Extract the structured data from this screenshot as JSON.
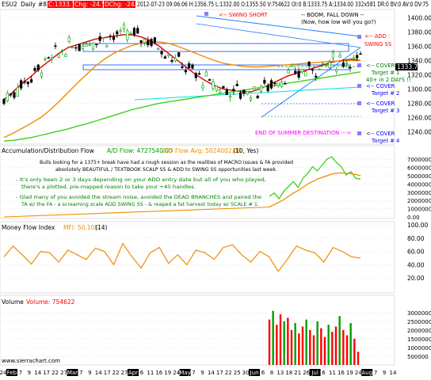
{
  "header": {
    "symbol": "ESU2",
    "period": "Daily",
    "study_no": "#8",
    "close_badge": "C:1333.75",
    "chg": "Chg: -24.50",
    "dchg": "DChg: -24.50",
    "quote": "2012-07-23 09:06:06 H:1356.75 L:1332.00 O:1355.50 V:754622 OI:0 B:1333.75 A:1334.00 332x581 DR:0 BV:0 AV:0 DV:75"
  },
  "annotations": {
    "swing_short": "<-- SWING SHORT",
    "boom_line1": "-- BOOM, FALL DOWN --",
    "boom_line2": "(Now, how low will you go?)",
    "add_line1": "<-- ADD :",
    "add_line2": "SWING SS",
    "cover1_line1": "<-- COVER",
    "cover1_line2": "Target # 1",
    "days_note": "40+ in 2 DAYS !!",
    "cover2_line1": "<-- COVER",
    "cover2_line2": "Target # 2",
    "cover3_line1": "<-- COVER",
    "cover3_line2": "Target # 3",
    "summer": "END OF SUMMER DESTINATION --->",
    "cover4_line1": "<-- COVER",
    "cover4_line2": "Target # 4",
    "note1_l1": "Bulls looking for a 1375+ break have had a rough session as the realities of MACRO issues & FA provided",
    "note1_l2": "absolutely BEAUTIFUL / TEXTBOOK SCALP SS & ADD to SWING SS opportunities last week.",
    "note2_l1": "- It's only been 2 or 3 days depending on your ADD entry date but all of you who played,",
    "note2_l2": "there's a plotted, pre-mapped reason to take your +40 handles.",
    "note3_l1": "- Glad many of you avoided the stream noise, avoided the DEAD BRANCHES and paired the",
    "note3_l2": "TA w/ the FA - a screaming scale ADD SWING SS - & reaped a fat harvest today w/ SCALE # 1."
  },
  "price_tag": "1333.75",
  "watermark": "www.sierrachart.com",
  "colors": {
    "price_up": "#00a000",
    "price_down": "#000000",
    "ema_red": "#e00000",
    "ma_orange": "#f08c00",
    "ma_green": "#40d020",
    "trend_blue": "#2080ff",
    "channel": "#0050ff",
    "cyan": "#00e0e0",
    "magenta": "#ff00ff",
    "label_blue": "#0000ff",
    "label_red": "#ff0000",
    "dark_green": "#008000",
    "vol_red": "#ff0000",
    "vol_green": "#00a000",
    "marker_purple": "#8080ff"
  },
  "chart_data": [
    {
      "type": "candlestick",
      "title": "ESU2 Daily",
      "y_ticks": [
        1240,
        1260,
        1280,
        1300,
        1320,
        1340,
        1360,
        1380,
        1400
      ],
      "ylim": [
        1225,
        1407
      ],
      "series": [
        {
          "name": "EMA red",
          "values": [
            1285,
            1296,
            1308,
            1318,
            1330,
            1340,
            1350,
            1358,
            1362,
            1366,
            1370,
            1372,
            1374,
            1376,
            1376,
            1373,
            1368,
            1360,
            1350,
            1340,
            1330,
            1320,
            1312,
            1305,
            1300,
            1298,
            1296,
            1296,
            1300,
            1306,
            1312,
            1318,
            1322,
            1326,
            1330,
            1334,
            1338,
            1340,
            1342,
            1340
          ]
        },
        {
          "name": "MA orange",
          "values": [
            1232,
            1238,
            1245,
            1252,
            1260,
            1270,
            1282,
            1295,
            1308,
            1320,
            1332,
            1342,
            1350,
            1356,
            1361,
            1364,
            1366,
            1366,
            1364,
            1360,
            1355,
            1350,
            1345,
            1340,
            1336,
            1334,
            1332,
            1331,
            1331,
            1332,
            1333,
            1334,
            1335,
            1336,
            1337,
            1338,
            1339,
            1339,
            1340,
            1340
          ]
        },
        {
          "name": "MA green",
          "values": [
            1227,
            1228,
            1230,
            1232,
            1235,
            1238,
            1241,
            1244,
            1248,
            1251,
            1255,
            1259,
            1263,
            1267,
            1271,
            1274,
            1277,
            1280,
            1282,
            1284,
            1286,
            1288,
            1290,
            1292,
            1294,
            1296,
            1298,
            1300,
            1302,
            1304,
            1306,
            1308,
            1310,
            1312,
            1314,
            1316,
            1318,
            1320,
            1322,
            1324
          ]
        }
      ],
      "levels": [
        {
          "name": "Target # 1",
          "price": 1340
        },
        {
          "name": "Target # 2",
          "price": 1305
        },
        {
          "name": "Target # 3",
          "price": 1282
        },
        {
          "name": "Target # 4",
          "price": 1262
        }
      ]
    },
    {
      "type": "line",
      "title": "Accumulation/Distribution Flow",
      "legend": [
        "A/D Flow: 4727540.00",
        "A/D Flow Avg: 5024002.00",
        "(10, Yes)"
      ],
      "y_ticks": [
        "0.00",
        "1000000.0",
        "2000000.0",
        "3000000.0",
        "4000000.0",
        "5000000.0",
        "6000000.0",
        "7000000.0"
      ],
      "ylim": [
        0,
        7500000
      ],
      "series": [
        {
          "name": "A/D Flow",
          "values": [
            2500000,
            2900000,
            2200000,
            3100000,
            3700000,
            4300000,
            3600000,
            4700000,
            5300000,
            6100000,
            5600000,
            6300000,
            7000000,
            7300000,
            6600000,
            6100000,
            5100000,
            5500000,
            4700000,
            4600000
          ]
        },
        {
          "name": "A/D Flow Avg",
          "values": [
            1200000,
            1500000,
            1800000,
            2100000,
            2500000,
            2900000,
            3200000,
            3600000,
            4000000,
            4300000,
            4600000,
            4800000,
            5000000,
            5200000,
            5300000,
            5350000,
            5300000,
            5250000,
            5150000,
            5024000
          ]
        }
      ]
    },
    {
      "type": "line",
      "title": "Money Flow Index",
      "legend": [
        "MFI: 50.105",
        "(14)"
      ],
      "y_ticks": [
        20,
        40,
        60,
        80,
        100
      ],
      "ylim": [
        0,
        100
      ],
      "series": [
        {
          "name": "MFI",
          "values": [
            52,
            68,
            55,
            41,
            60,
            58,
            44,
            62,
            55,
            48,
            65,
            60,
            40,
            72,
            52,
            35,
            58,
            66,
            42,
            55,
            40,
            62,
            58,
            48,
            66,
            70,
            55,
            44,
            60,
            52,
            30,
            48,
            68,
            62,
            58,
            44,
            66,
            60,
            52,
            50
          ]
        }
      ]
    },
    {
      "type": "bar",
      "title": "Volume",
      "legend": [
        "Volume: 754622"
      ],
      "y_ticks": [
        "500000",
        "1000000",
        "1500000",
        "2000000",
        "2500000",
        "3000000"
      ],
      "ylim": [
        0,
        3400000
      ],
      "values": [
        2600000,
        3100000,
        2300000,
        2900000,
        2500000,
        2700000,
        2000000,
        2400000,
        1800000,
        2200000,
        2600000,
        2000000,
        1700000,
        2500000,
        2100000,
        1600000,
        2300000,
        1900000,
        2200000,
        2800000,
        2000000,
        1700000,
        2400000,
        1500000,
        754622
      ]
    }
  ],
  "x_axis": [
    "24",
    "Feb",
    "7",
    "9",
    "14",
    "17",
    "22",
    "27",
    "Mar",
    "7",
    "9",
    "14",
    "17",
    "22",
    "27",
    "Apr",
    "6",
    "11",
    "16",
    "19",
    "24",
    "May",
    "7",
    "9",
    "14",
    "17",
    "22",
    "25",
    "30",
    "Jun",
    "6",
    "8",
    "13",
    "18",
    "21",
    "26",
    "Jul",
    "6",
    "11",
    "16",
    "19",
    "24",
    "Aug",
    "7",
    "9",
    "14"
  ]
}
